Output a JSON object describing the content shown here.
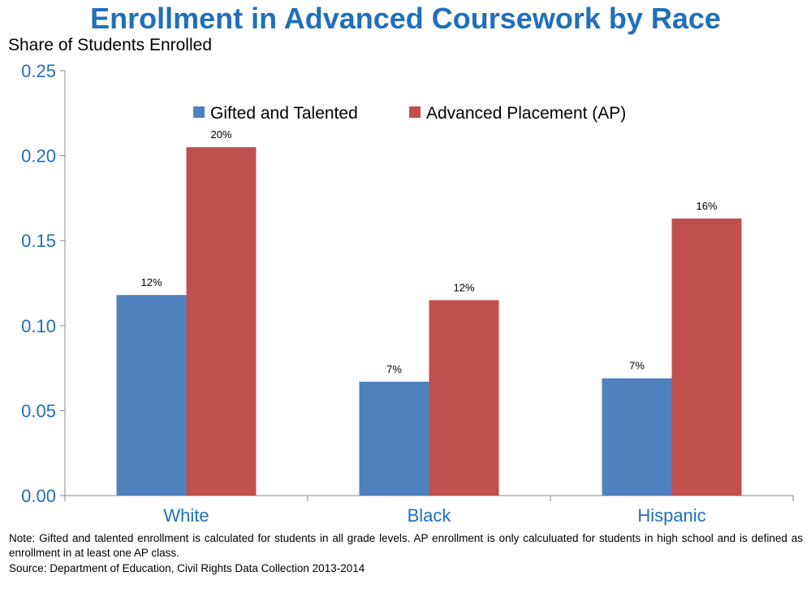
{
  "chart_data": {
    "type": "bar",
    "title": "Enrollment in Advanced Coursework by Race",
    "xlabel": "",
    "ylabel": "Share of Students Enrolled",
    "categories": [
      "White",
      "Black",
      "Hispanic"
    ],
    "series": [
      {
        "name": "Gifted and Talented",
        "color": "#4f81bd",
        "values": [
          0.118,
          0.067,
          0.069
        ],
        "labels": [
          "12%",
          "7%",
          "7%"
        ]
      },
      {
        "name": "Advanced Placement (AP)",
        "color": "#c0504d",
        "values": [
          0.205,
          0.115,
          0.163
        ],
        "labels": [
          "20%",
          "12%",
          "16%"
        ]
      }
    ],
    "ylim": [
      0,
      0.25
    ],
    "yticks": [
      0.0,
      0.05,
      0.1,
      0.15,
      0.2,
      0.25
    ],
    "ytick_labels": [
      "0.00",
      "0.05",
      "0.10",
      "0.15",
      "0.20",
      "0.25"
    ],
    "grid": false,
    "legend": "top-center"
  },
  "note": "Note: Gifted and talented enrollment is calculated for students in all grade levels. AP enrollment is only calculuated for students in high school and is defined as enrollment in at least one AP class.",
  "source": "Source: Department of Education, Civil Rights Data Collection 2013-2014",
  "colors": {
    "title": "#1f6fba",
    "axis_text": "#1f6fba"
  }
}
